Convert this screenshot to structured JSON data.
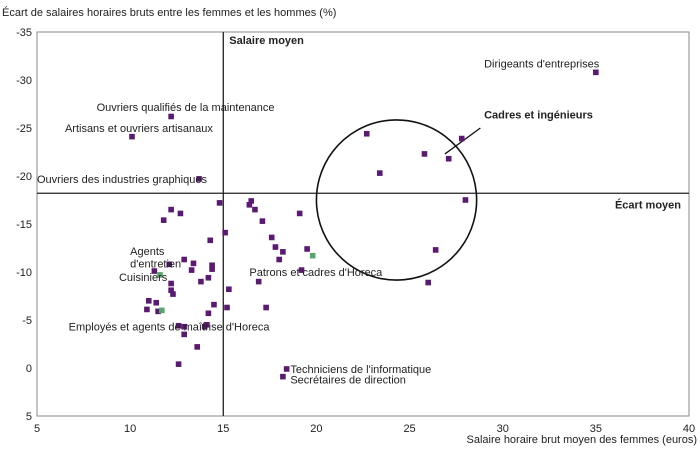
{
  "chart_data": {
    "type": "scatter",
    "title": "",
    "ylabel": "Écart de salaires horaires bruts entre les femmes et les hommes (%)",
    "xlabel": "Salaire horaire brut moyen des femmes (euros)",
    "xlim": [
      5,
      40
    ],
    "ylim": [
      5,
      -35
    ],
    "x_ticks": [
      5,
      10,
      15,
      20,
      25,
      30,
      35,
      40
    ],
    "y_ticks": [
      -35,
      -30,
      -25,
      -20,
      -15,
      -10,
      -5,
      0,
      5
    ],
    "grid": false,
    "legend": "none",
    "colors": {
      "purple": "#5b1a72",
      "green": "#5aa66a",
      "axis": "#888888",
      "reference": "#222222"
    },
    "reference_lines": {
      "vertical": {
        "x": 15.0,
        "label": "Salaire moyen"
      },
      "horizontal": {
        "y": -18.2,
        "label": "Écart moyen"
      }
    },
    "points": [
      {
        "x": 10.1,
        "y": -24.1,
        "c": "purple"
      },
      {
        "x": 12.2,
        "y": -26.2,
        "c": "purple"
      },
      {
        "x": 13.7,
        "y": -19.7,
        "c": "purple"
      },
      {
        "x": 35.0,
        "y": -30.8,
        "c": "purple"
      },
      {
        "x": 22.7,
        "y": -24.4,
        "c": "purple"
      },
      {
        "x": 27.8,
        "y": -23.9,
        "c": "purple"
      },
      {
        "x": 25.8,
        "y": -22.3,
        "c": "purple"
      },
      {
        "x": 27.1,
        "y": -21.8,
        "c": "purple"
      },
      {
        "x": 23.4,
        "y": -20.3,
        "c": "purple"
      },
      {
        "x": 28.0,
        "y": -17.5,
        "c": "purple"
      },
      {
        "x": 26.4,
        "y": -12.3,
        "c": "purple"
      },
      {
        "x": 26.0,
        "y": -8.9,
        "c": "purple"
      },
      {
        "x": 18.4,
        "y": 0.1,
        "c": "purple"
      },
      {
        "x": 18.2,
        "y": 0.9,
        "c": "purple"
      },
      {
        "x": 12.2,
        "y": -16.5,
        "c": "purple"
      },
      {
        "x": 11.8,
        "y": -15.4,
        "c": "purple"
      },
      {
        "x": 12.7,
        "y": -16.1,
        "c": "purple"
      },
      {
        "x": 14.8,
        "y": -17.2,
        "c": "purple"
      },
      {
        "x": 16.5,
        "y": -17.4,
        "c": "purple"
      },
      {
        "x": 16.4,
        "y": -17.0,
        "c": "purple"
      },
      {
        "x": 16.7,
        "y": -16.5,
        "c": "purple"
      },
      {
        "x": 17.1,
        "y": -15.3,
        "c": "purple"
      },
      {
        "x": 19.1,
        "y": -16.1,
        "c": "purple"
      },
      {
        "x": 15.1,
        "y": -14.1,
        "c": "purple"
      },
      {
        "x": 14.3,
        "y": -13.3,
        "c": "purple"
      },
      {
        "x": 17.6,
        "y": -13.6,
        "c": "purple"
      },
      {
        "x": 17.8,
        "y": -12.6,
        "c": "purple"
      },
      {
        "x": 18.2,
        "y": -12.1,
        "c": "purple"
      },
      {
        "x": 19.5,
        "y": -12.4,
        "c": "purple"
      },
      {
        "x": 19.8,
        "y": -11.7,
        "c": "green"
      },
      {
        "x": 12.1,
        "y": -10.8,
        "c": "purple"
      },
      {
        "x": 12.9,
        "y": -11.3,
        "c": "purple"
      },
      {
        "x": 13.4,
        "y": -10.9,
        "c": "purple"
      },
      {
        "x": 13.3,
        "y": -10.2,
        "c": "purple"
      },
      {
        "x": 14.4,
        "y": -10.7,
        "c": "purple"
      },
      {
        "x": 14.4,
        "y": -10.3,
        "c": "purple"
      },
      {
        "x": 18.0,
        "y": -11.3,
        "c": "purple"
      },
      {
        "x": 16.9,
        "y": -9.0,
        "c": "purple"
      },
      {
        "x": 15.3,
        "y": -8.2,
        "c": "purple"
      },
      {
        "x": 14.2,
        "y": -9.4,
        "c": "purple"
      },
      {
        "x": 13.8,
        "y": -9.0,
        "c": "purple"
      },
      {
        "x": 11.3,
        "y": -10.1,
        "c": "purple"
      },
      {
        "x": 11.6,
        "y": -9.7,
        "c": "green"
      },
      {
        "x": 12.2,
        "y": -8.8,
        "c": "purple"
      },
      {
        "x": 12.2,
        "y": -8.1,
        "c": "purple"
      },
      {
        "x": 12.3,
        "y": -7.7,
        "c": "purple"
      },
      {
        "x": 11.0,
        "y": -7.0,
        "c": "purple"
      },
      {
        "x": 11.4,
        "y": -6.8,
        "c": "purple"
      },
      {
        "x": 10.9,
        "y": -6.1,
        "c": "purple"
      },
      {
        "x": 11.5,
        "y": -5.9,
        "c": "purple"
      },
      {
        "x": 11.7,
        "y": -6.0,
        "c": "green"
      },
      {
        "x": 14.5,
        "y": -6.6,
        "c": "purple"
      },
      {
        "x": 15.2,
        "y": -6.3,
        "c": "purple"
      },
      {
        "x": 17.3,
        "y": -6.3,
        "c": "purple"
      },
      {
        "x": 14.2,
        "y": -5.7,
        "c": "purple"
      },
      {
        "x": 14.0,
        "y": -4.3,
        "c": "purple"
      },
      {
        "x": 14.1,
        "y": -4.5,
        "c": "purple"
      },
      {
        "x": 12.6,
        "y": -4.4,
        "c": "purple"
      },
      {
        "x": 12.9,
        "y": -4.3,
        "c": "purple"
      },
      {
        "x": 12.9,
        "y": -3.5,
        "c": "purple"
      },
      {
        "x": 13.6,
        "y": -2.2,
        "c": "purple"
      },
      {
        "x": 12.6,
        "y": -0.4,
        "c": "purple"
      },
      {
        "x": 19.2,
        "y": -10.2,
        "c": "purple"
      }
    ],
    "annotations": [
      {
        "text": "Ouvriers qualifiés de la maintenance",
        "x": 8.2,
        "y": -27.2,
        "bold": false
      },
      {
        "text": "Artisans et ouvriers artisanaux",
        "x": 6.5,
        "y": -25.0,
        "bold": false
      },
      {
        "text": "Ouvriers des industries graphiques",
        "x": 5.0,
        "y": -19.7,
        "bold": false
      },
      {
        "text": "Dirigeants d'entreprises",
        "x": 29.0,
        "y": -31.7,
        "bold": false
      },
      {
        "text": "Cadres et ingénieurs",
        "x": 29.0,
        "y": -26.4,
        "bold": true
      },
      {
        "text": "Agents",
        "x": 10.0,
        "y": -12.2,
        "bold": false
      },
      {
        "text": "d'entretien",
        "x": 10.0,
        "y": -10.9,
        "bold": false
      },
      {
        "text": "Cuisiniers",
        "x": 9.4,
        "y": -9.5,
        "bold": false
      },
      {
        "text": "Patrons et cadres d'Horeca",
        "x": 16.4,
        "y": -10.0,
        "bold": false
      },
      {
        "text": "Employés et agents de maîtrise d'Horeca",
        "x": 6.7,
        "y": -4.3,
        "bold": false
      },
      {
        "text": "Techniciens de l'informatique",
        "x": 18.6,
        "y": 0.1,
        "bold": false
      },
      {
        "text": "Secrétaires de direction",
        "x": 18.6,
        "y": 1.2,
        "bold": false
      }
    ],
    "ellipse": {
      "cx": 24.3,
      "cy": -17.5,
      "rx": 4.3,
      "ry": 10.6,
      "angle": 16
    },
    "callout": {
      "from_x": 28.8,
      "from_y": -25.0,
      "to_x": 26.9,
      "to_y": -22.3
    }
  }
}
